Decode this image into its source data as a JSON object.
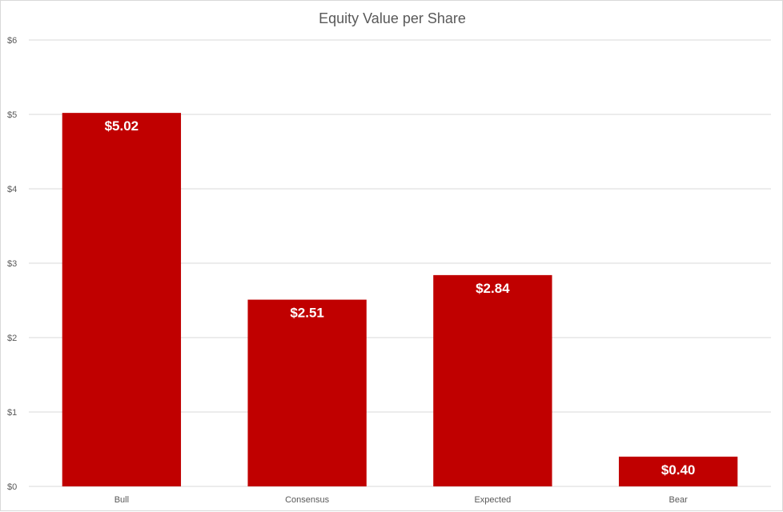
{
  "chart_data": {
    "type": "bar",
    "title": "Equity Value per Share",
    "categories": [
      "Bull",
      "Consensus",
      "Expected",
      "Bear"
    ],
    "values": [
      5.02,
      2.51,
      2.84,
      0.4
    ],
    "data_labels": [
      "$5.02",
      "$2.51",
      "$2.84",
      "$0.40"
    ],
    "y_ticks": [
      0,
      1,
      2,
      3,
      4,
      5,
      6
    ],
    "y_tick_labels": [
      "$0",
      "$1",
      "$2",
      "$3",
      "$4",
      "$5",
      "$6"
    ],
    "ylim": [
      0,
      6
    ],
    "xlabel": "",
    "ylabel": "",
    "grid": true,
    "legend": "none",
    "bar_color": "#C00000"
  }
}
